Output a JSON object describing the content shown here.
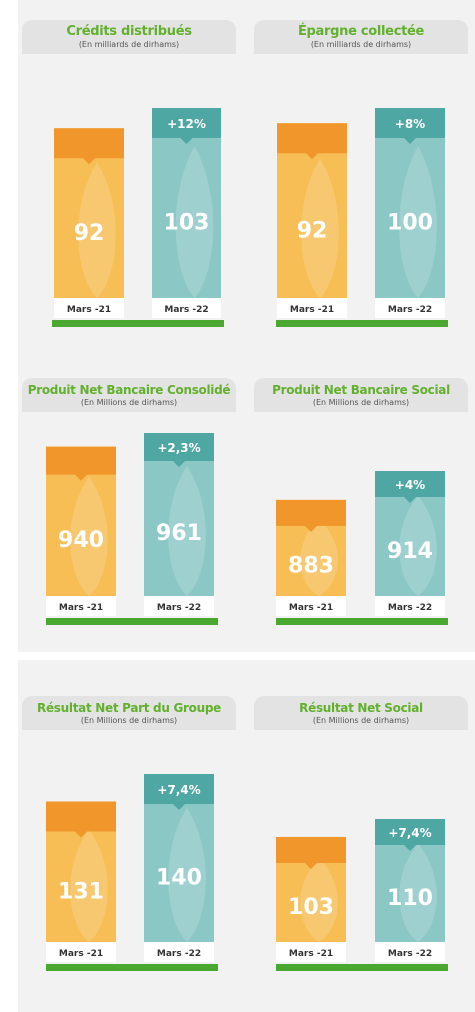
{
  "colors": {
    "orange_bar": "#f6be55",
    "orange_cap": "#f0962a",
    "teal_bar": "#8bc7c5",
    "teal_cap": "#4fa7a4",
    "green_baseline": "#4aa830",
    "title_green": "#62b02e"
  },
  "charts": [
    {
      "title": "Crédits distribués",
      "subtitle": "(En milliards de dirhams)"
    },
    {
      "title": "Épargne collectée",
      "subtitle": "(En milliards de dirhams)"
    },
    {
      "title": "Produit Net Bancaire Consolidé",
      "subtitle": "(En Millions de dirhams)"
    },
    {
      "title": "Produit Net Bancaire Social",
      "subtitle": "(En Millions de dirhams)"
    },
    {
      "title": "Résultat Net Part du Groupe",
      "subtitle": "(En Millions de dirhams)"
    },
    {
      "title": "Résultat Net Social",
      "subtitle": "(En Millions de dirhams)"
    }
  ],
  "chart_data": [
    {
      "type": "bar",
      "title": "Crédits distribués",
      "subtitle": "(En milliards de dirhams)",
      "categories": [
        "Mars -21",
        "Mars -22"
      ],
      "values": [
        92,
        103
      ],
      "change": "+12%"
    },
    {
      "type": "bar",
      "title": "Épargne collectée",
      "subtitle": "(En milliards de dirhams)",
      "categories": [
        "Mars -21",
        "Mars -22"
      ],
      "values": [
        92,
        100
      ],
      "change": "+8%"
    },
    {
      "type": "bar",
      "title": "Produit Net Bancaire Consolidé",
      "subtitle": "(En Millions de dirhams)",
      "categories": [
        "Mars -21",
        "Mars -22"
      ],
      "values": [
        940,
        961
      ],
      "change": "+2,3%"
    },
    {
      "type": "bar",
      "title": "Produit Net Bancaire Social",
      "subtitle": "(En Millions de dirhams)",
      "categories": [
        "Mars -21",
        "Mars -22"
      ],
      "values": [
        883,
        914
      ],
      "change": "+4%"
    },
    {
      "type": "bar",
      "title": "Résultat Net Part du Groupe",
      "subtitle": "(En Millions de dirhams)",
      "categories": [
        "Mars -21",
        "Mars -22"
      ],
      "values": [
        131,
        140
      ],
      "change": "+7,4%"
    },
    {
      "type": "bar",
      "title": "Résultat Net Social",
      "subtitle": "(En Millions de dirhams)",
      "categories": [
        "Mars -21",
        "Mars -22"
      ],
      "values": [
        103,
        110
      ],
      "change": "+7,4%"
    }
  ]
}
